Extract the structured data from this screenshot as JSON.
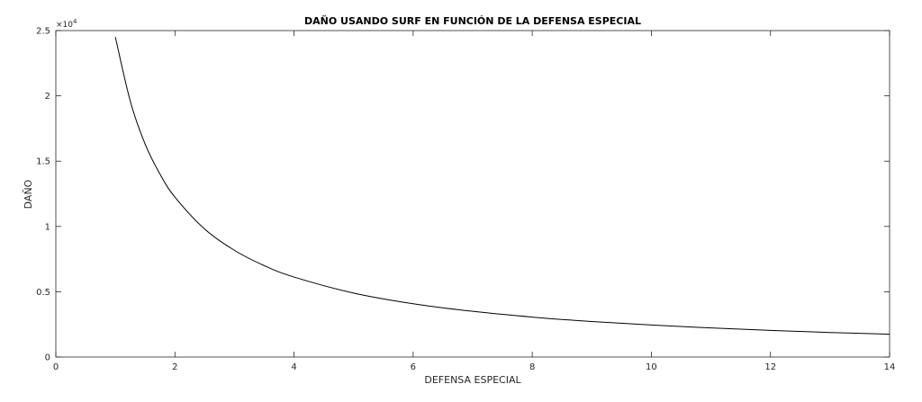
{
  "chart_data": {
    "type": "line",
    "title": "DAÑO USANDO SURF EN FUNCIÓN DE LA DEFENSA ESPECIAL",
    "xlabel": "DEFENSA ESPECIAL",
    "ylabel": "DAÑO",
    "xlim": [
      0,
      14
    ],
    "ylim": [
      0,
      25000
    ],
    "x_ticks": [
      0,
      2,
      4,
      6,
      8,
      10,
      12,
      14
    ],
    "x_tick_labels": [
      "0",
      "2",
      "4",
      "6",
      "8",
      "10",
      "12",
      "14"
    ],
    "y_ticks": [
      0,
      5000,
      10000,
      15000,
      20000,
      25000
    ],
    "y_tick_labels": [
      "0",
      "0.5",
      "1",
      "1.5",
      "2",
      "2.5"
    ],
    "y_exponent_label": "×10",
    "y_exponent": "4",
    "grid": false,
    "series": [
      {
        "color": "#000000",
        "x": [
          1,
          1.25,
          1.5,
          1.75,
          2,
          2.5,
          3,
          3.5,
          4,
          5,
          6,
          7,
          8,
          9,
          10,
          11,
          12,
          13,
          14
        ],
        "y": [
          24500,
          19600,
          16300,
          14000,
          12250,
          9800,
          8170,
          7000,
          6125,
          4900,
          4080,
          3500,
          3060,
          2720,
          2450,
          2230,
          2040,
          1880,
          1750
        ]
      }
    ]
  }
}
